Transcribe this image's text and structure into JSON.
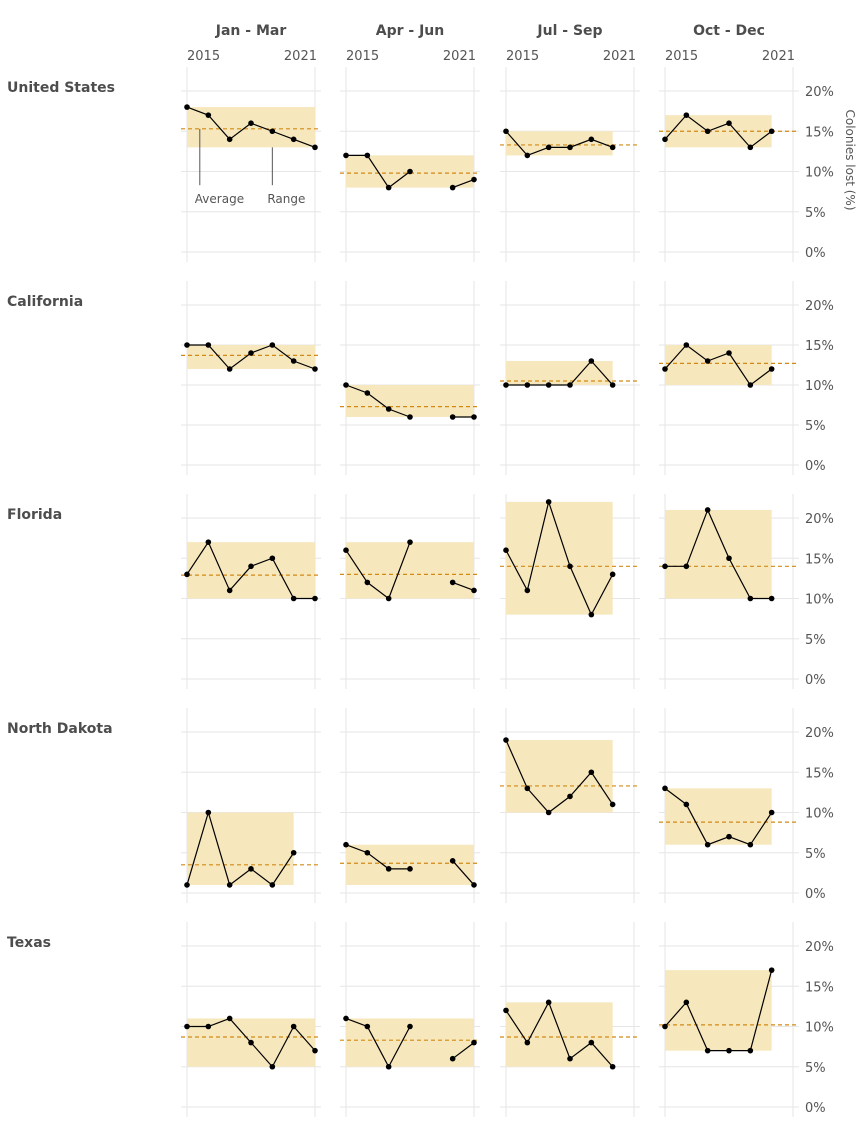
{
  "chart_data": {
    "type": "line",
    "y_axis": {
      "title": "Colonies lost (%)",
      "range": [
        0,
        22
      ],
      "ticks": [
        "0%",
        "5%",
        "10%",
        "15%",
        "20%"
      ],
      "tick_values": [
        0,
        5,
        10,
        15,
        20
      ]
    },
    "x_axis": {
      "range": [
        2015,
        2021
      ],
      "tick_labels": [
        "2015",
        "2021"
      ]
    },
    "quarters": [
      "Jan - Mar",
      "Apr - Jun",
      "Jul - Sep",
      "Oct - Dec"
    ],
    "annotations": {
      "average_label": "Average",
      "range_label": "Range"
    },
    "colors": {
      "band": "#f7e7bd",
      "average_line": "#d08a15",
      "line": "#000000",
      "grid": "#e6e6e6"
    },
    "regions": [
      {
        "name": "United States",
        "quarters": [
          {
            "x": [
              2015,
              2016,
              2017,
              2018,
              2019,
              2020,
              2021
            ],
            "y": [
              18,
              17,
              14,
              16,
              15,
              14,
              13
            ],
            "average": 15.3,
            "range": [
              13,
              18
            ]
          },
          {
            "x": [
              2015,
              2016,
              2017,
              2018,
              2020,
              2021
            ],
            "y": [
              12,
              12,
              8,
              10,
              8,
              9
            ],
            "average": 9.8,
            "range": [
              8,
              12
            ]
          },
          {
            "x": [
              2015,
              2016,
              2017,
              2018,
              2019,
              2020
            ],
            "y": [
              15,
              12,
              13,
              13,
              14,
              13
            ],
            "average": 13.3,
            "range": [
              12,
              15
            ]
          },
          {
            "x": [
              2015,
              2016,
              2017,
              2018,
              2019,
              2020
            ],
            "y": [
              14,
              17,
              15,
              16,
              13,
              15
            ],
            "average": 15.0,
            "range": [
              13,
              17
            ]
          }
        ]
      },
      {
        "name": "California",
        "quarters": [
          {
            "x": [
              2015,
              2016,
              2017,
              2018,
              2019,
              2020,
              2021
            ],
            "y": [
              15,
              15,
              12,
              14,
              15,
              13,
              12
            ],
            "average": 13.7,
            "range": [
              12,
              15
            ]
          },
          {
            "x": [
              2015,
              2016,
              2017,
              2018,
              2020,
              2021
            ],
            "y": [
              10,
              9,
              7,
              6,
              6,
              6
            ],
            "average": 7.3,
            "range": [
              6,
              10
            ]
          },
          {
            "x": [
              2015,
              2016,
              2017,
              2018,
              2019,
              2020
            ],
            "y": [
              10,
              10,
              10,
              10,
              13,
              10
            ],
            "average": 10.5,
            "range": [
              10,
              13
            ]
          },
          {
            "x": [
              2015,
              2016,
              2017,
              2018,
              2019,
              2020
            ],
            "y": [
              12,
              15,
              13,
              14,
              10,
              12
            ],
            "average": 12.7,
            "range": [
              10,
              15
            ]
          }
        ]
      },
      {
        "name": "Florida",
        "quarters": [
          {
            "x": [
              2015,
              2016,
              2017,
              2018,
              2019,
              2020,
              2021
            ],
            "y": [
              13,
              17,
              11,
              14,
              15,
              10,
              10
            ],
            "average": 12.9,
            "range": [
              10,
              17
            ]
          },
          {
            "x": [
              2015,
              2016,
              2017,
              2018,
              2020,
              2021
            ],
            "y": [
              16,
              12,
              10,
              17,
              12,
              11
            ],
            "average": 13.0,
            "range": [
              10,
              17
            ]
          },
          {
            "x": [
              2015,
              2016,
              2017,
              2018,
              2019,
              2020
            ],
            "y": [
              16,
              11,
              22,
              14,
              8,
              13
            ],
            "average": 14.0,
            "range": [
              8,
              22
            ]
          },
          {
            "x": [
              2015,
              2016,
              2017,
              2018,
              2019,
              2020
            ],
            "y": [
              14,
              14,
              21,
              15,
              10,
              10
            ],
            "average": 14.0,
            "range": [
              10,
              21
            ]
          }
        ]
      },
      {
        "name": "North Dakota",
        "quarters": [
          {
            "x": [
              2015,
              2016,
              2017,
              2018,
              2019,
              2020
            ],
            "y": [
              1,
              10,
              1,
              3,
              1,
              5
            ],
            "average": 3.5,
            "range": [
              1,
              10
            ]
          },
          {
            "x": [
              2015,
              2016,
              2017,
              2018,
              2020,
              2021
            ],
            "y": [
              6,
              5,
              3,
              3,
              4,
              1
            ],
            "average": 3.7,
            "range": [
              1,
              6
            ]
          },
          {
            "x": [
              2015,
              2016,
              2017,
              2018,
              2019,
              2020
            ],
            "y": [
              19,
              13,
              10,
              12,
              15,
              11
            ],
            "average": 13.3,
            "range": [
              10,
              19
            ]
          },
          {
            "x": [
              2015,
              2016,
              2017,
              2018,
              2019,
              2020
            ],
            "y": [
              13,
              11,
              6,
              7,
              6,
              10
            ],
            "average": 8.8,
            "range": [
              6,
              13
            ]
          }
        ]
      },
      {
        "name": "Texas",
        "quarters": [
          {
            "x": [
              2015,
              2016,
              2017,
              2018,
              2019,
              2020,
              2021
            ],
            "y": [
              10,
              10,
              11,
              8,
              5,
              10,
              7
            ],
            "average": 8.7,
            "range": [
              5,
              11
            ]
          },
          {
            "x": [
              2015,
              2016,
              2017,
              2018,
              2020,
              2021
            ],
            "y": [
              11,
              10,
              5,
              10,
              6,
              8
            ],
            "average": 8.3,
            "range": [
              5,
              11
            ]
          },
          {
            "x": [
              2015,
              2016,
              2017,
              2018,
              2019,
              2020
            ],
            "y": [
              12,
              8,
              13,
              6,
              8,
              5
            ],
            "average": 8.7,
            "range": [
              5,
              13
            ]
          },
          {
            "x": [
              2015,
              2016,
              2017,
              2018,
              2019,
              2020
            ],
            "y": [
              10,
              13,
              7,
              7,
              7,
              17
            ],
            "average": 10.2,
            "range": [
              7,
              17
            ]
          }
        ]
      }
    ]
  }
}
